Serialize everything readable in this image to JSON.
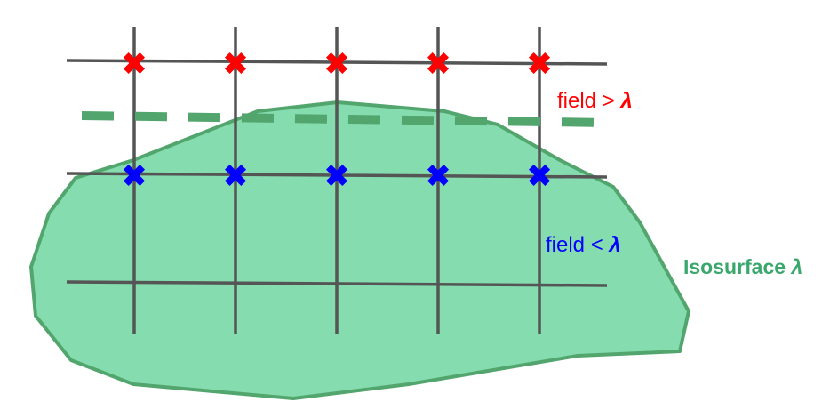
{
  "labels": {
    "field_above": "field > ",
    "field_below": "field < ",
    "lambda": "λ",
    "isosurface": "Isosurface ",
    "isosurface_symbol": "λ"
  },
  "colors": {
    "grid": "#555555",
    "region_fill": "#84dcaf",
    "region_stroke": "#52a56d",
    "isoline": "#52a56d",
    "above": "#ff0000",
    "below": "#0000ff",
    "isosurface_label": "#3aa76d"
  },
  "markers": {
    "above_row_count": 5,
    "below_row_count": 5,
    "above_icon": "red-x-marker",
    "below_icon": "blue-x-marker"
  }
}
